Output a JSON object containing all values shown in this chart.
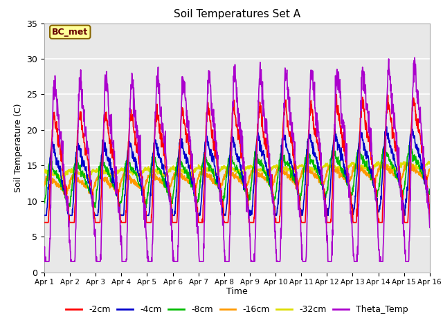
{
  "title": "Soil Temperatures Set A",
  "xlabel": "Time",
  "ylabel": "Soil Temperature (C)",
  "ylim": [
    0,
    35
  ],
  "xlim": [
    0,
    15
  ],
  "xtick_labels": [
    "Apr 1",
    "Apr 2",
    "Apr 3",
    "Apr 4",
    "Apr 5",
    "Apr 6",
    "Apr 7",
    "Apr 8",
    "Apr 9",
    "Apr 10",
    "Apr 11",
    "Apr 12",
    "Apr 13",
    "Apr 14",
    "Apr 15",
    "Apr 16"
  ],
  "ytick_values": [
    0,
    5,
    10,
    15,
    20,
    25,
    30,
    35
  ],
  "annotation_text": "BC_met",
  "annotation_bg": "#ffff99",
  "annotation_border": "#886600",
  "colors": {
    "-2cm": "#ff0000",
    "-4cm": "#0000cc",
    "-8cm": "#00bb00",
    "-16cm": "#ff9900",
    "-32cm": "#dddd00",
    "Theta_Temp": "#aa00cc"
  },
  "background_color": "#e8e8e8",
  "grid_color": "#ffffff",
  "fig_width": 6.4,
  "fig_height": 4.8,
  "dpi": 100
}
